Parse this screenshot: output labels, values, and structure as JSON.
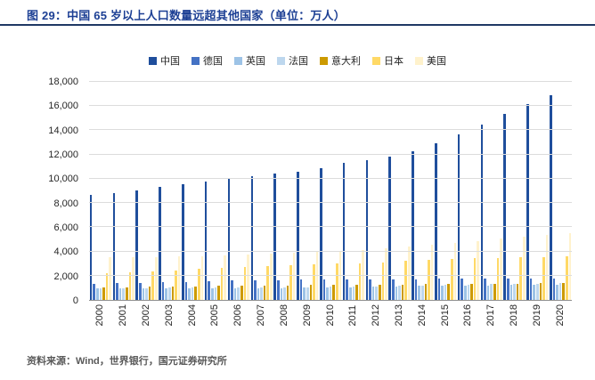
{
  "header": {
    "title": "图 29：中国 65 岁以上人口数量远超其他国家（单位：万人）"
  },
  "footer": {
    "source": "资料来源：Wind，世界银行，国元证券研究所"
  },
  "colors": {
    "title_blue": "#1C3F94",
    "header_rule": "#1F3864",
    "gridline": "#DCDCDC",
    "axis_line": "#8F8F8F",
    "source_text": "#595959"
  },
  "chart_data": {
    "type": "bar",
    "title": "中国 65 岁以上人口数量远超其他国家（单位：万人）",
    "xlabel": "",
    "ylabel": "",
    "ylim": [
      0,
      18000
    ],
    "grid": true,
    "legend_position": "top",
    "y_tick_values": [
      18000,
      16000,
      14000,
      12000,
      10000,
      8000,
      6000,
      4000,
      2000,
      0
    ],
    "y_tick_labels": [
      "18,000",
      "16,000",
      "14,000",
      "12,000",
      "10,000",
      "8,000",
      "6,000",
      "4,000",
      "2,000",
      "0"
    ],
    "categories": [
      "2000",
      "2001",
      "2002",
      "2003",
      "2004",
      "2005",
      "2006",
      "2007",
      "2008",
      "2009",
      "2010",
      "2011",
      "2012",
      "2013",
      "2014",
      "2015",
      "2016",
      "2017",
      "2018",
      "2019",
      "2020"
    ],
    "series": [
      {
        "name": "中国",
        "color": "#1F4E9C",
        "values": [
          8700,
          8850,
          9050,
          9300,
          9550,
          9800,
          10050,
          10250,
          10400,
          10600,
          10850,
          11300,
          11500,
          11850,
          12300,
          12900,
          13650,
          14500,
          15350,
          16150,
          16900
        ]
      },
      {
        "name": "德国",
        "color": "#4472C4",
        "values": [
          1350,
          1380,
          1420,
          1460,
          1500,
          1550,
          1590,
          1620,
          1640,
          1660,
          1670,
          1680,
          1690,
          1700,
          1710,
          1730,
          1750,
          1760,
          1780,
          1790,
          1800
        ]
      },
      {
        "name": "英国",
        "color": "#9DC3E6",
        "values": [
          930,
          935,
          940,
          945,
          950,
          955,
          965,
          975,
          990,
          1005,
          1025,
          1050,
          1080,
          1110,
          1140,
          1165,
          1190,
          1210,
          1230,
          1240,
          1250
        ]
      },
      {
        "name": "法国",
        "color": "#BDD7EE",
        "values": [
          965,
          975,
          985,
          995,
          1005,
          1010,
          1020,
          1030,
          1045,
          1055,
          1075,
          1100,
          1130,
          1160,
          1195,
          1230,
          1260,
          1290,
          1320,
          1355,
          1390
        ]
      },
      {
        "name": "意大利",
        "color": "#CC9A00",
        "values": [
          1040,
          1060,
          1080,
          1100,
          1120,
          1140,
          1160,
          1180,
          1200,
          1215,
          1230,
          1245,
          1260,
          1275,
          1295,
          1315,
          1330,
          1345,
          1355,
          1365,
          1370
        ]
      },
      {
        "name": "日本",
        "color": "#FFD966",
        "values": [
          2200,
          2280,
          2360,
          2450,
          2540,
          2630,
          2720,
          2810,
          2890,
          2960,
          2990,
          3020,
          3110,
          3210,
          3300,
          3380,
          3440,
          3490,
          3530,
          3560,
          3600
        ]
      },
      {
        "name": "美国",
        "color": "#FFF2CC",
        "values": [
          3500,
          3520,
          3550,
          3580,
          3620,
          3670,
          3730,
          3800,
          3890,
          3990,
          4030,
          4140,
          4280,
          4420,
          4570,
          4720,
          4880,
          5040,
          5210,
          5360,
          5500
        ]
      }
    ]
  }
}
